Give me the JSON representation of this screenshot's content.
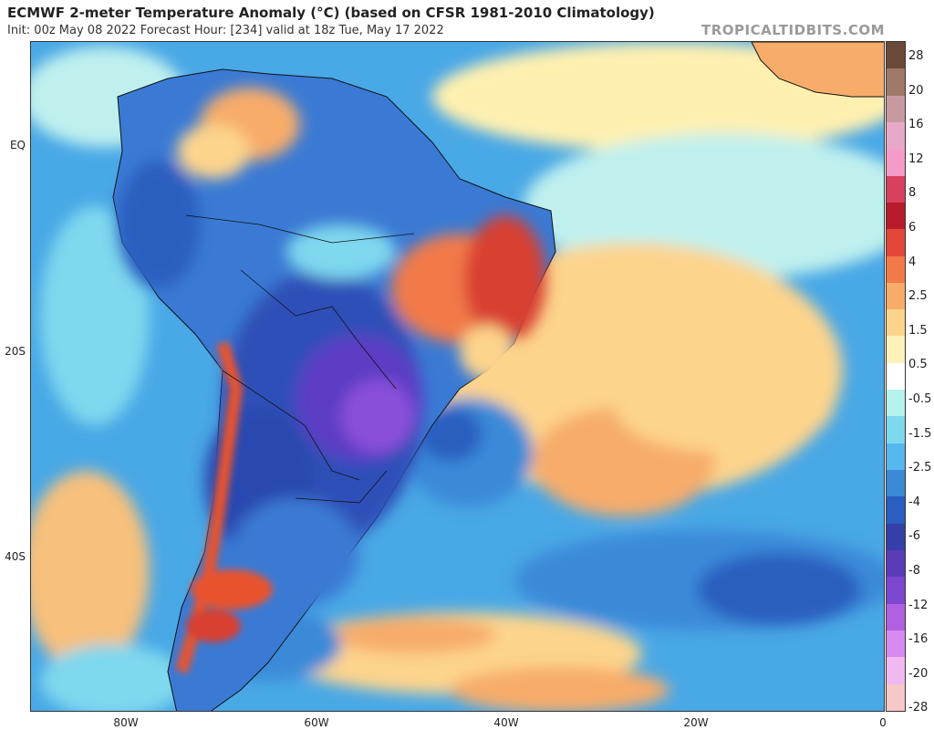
{
  "header": {
    "title": "ECMWF 2-meter Temperature Anomaly (°C) (based on CFSR 1981-2010 Climatology)",
    "subtitle": "Init: 00z May 08 2022   Forecast Hour: [234]   valid at 18z Tue, May 17 2022",
    "brand": "TROPICALTIDBITS.COM"
  },
  "axes": {
    "lat_ticks": [
      "EQ",
      "20S",
      "40S"
    ],
    "lon_ticks": [
      "80W",
      "60W",
      "40W",
      "20W",
      "0"
    ]
  },
  "colorbar": {
    "labels": [
      "28",
      "20",
      "16",
      "12",
      "8",
      "6",
      "4",
      "2.5",
      "1.5",
      "0.5",
      "-0.5",
      "-1.5",
      "-2.5",
      "-4",
      "-6",
      "-8",
      "-12",
      "-16",
      "-20",
      "-28"
    ],
    "colors": [
      "#6b4a3a",
      "#a07868",
      "#c89aa0",
      "#e8a8c8",
      "#f39cc8",
      "#d84060",
      "#b81c2a",
      "#e2463a",
      "#f27a4a",
      "#f7ac6a",
      "#fdd48c",
      "#fff2b8",
      "#ffffff",
      "#b6f2ee",
      "#7ed8ee",
      "#56b6ee",
      "#3a8ad8",
      "#2a5ec0",
      "#3440a8",
      "#5a3cb8",
      "#7c48d0",
      "#b060e0",
      "#d88af0",
      "#f2b8f0",
      "#f6c8c8"
    ]
  },
  "map": {
    "background_color": "#49a8e6",
    "land_color": "#2f5fc6",
    "warm_color": "#e8532f",
    "cold_color": "#5b3cc4"
  }
}
